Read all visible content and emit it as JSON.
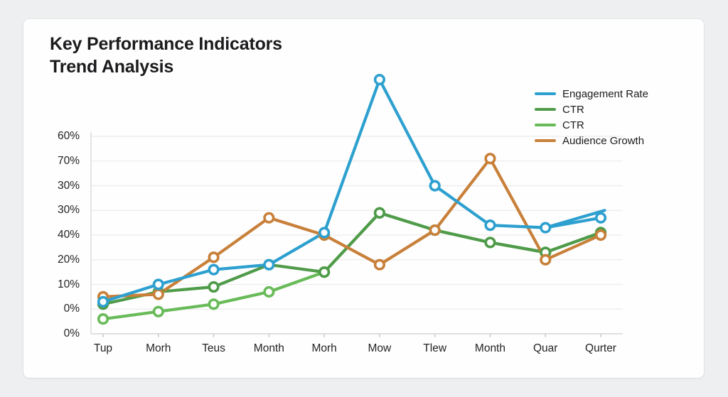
{
  "header": {
    "title": "Key Performance Indicators\nTrend Analysis"
  },
  "legend": {
    "items": [
      {
        "label": "Engagement Rate",
        "color": "#2da0cf"
      },
      {
        "label": "CTR",
        "color": "#4f9b49"
      },
      {
        "label": "CTR",
        "color": "#68bb58"
      },
      {
        "label": "Audience Growth",
        "color": "#c8803a"
      }
    ]
  },
  "chart_data": {
    "type": "line",
    "title": "Key Performance Indicators Trend Analysis",
    "categories": [
      "Tup",
      "Morh",
      "Teus",
      "Month",
      "Morh",
      "Mow",
      "Tlew",
      "Month",
      "Quar",
      "Qurter"
    ],
    "y_tick_labels_top_to_bottom": [
      "60%",
      "70%",
      "30%",
      "30%",
      "40%",
      "20%",
      "10%",
      "0%",
      "0%"
    ],
    "unit_per_gridline": 10,
    "ylim": [
      0,
      110
    ],
    "grid": true,
    "legend_position": "top-right",
    "series": [
      {
        "name": "Engagement Rate",
        "color": "#2da0cf",
        "values": [
          13,
          20,
          26,
          28,
          41,
          103,
          60,
          44,
          43,
          47
        ]
      },
      {
        "name": "CTR",
        "color": "#4f9b49",
        "values": [
          12,
          17,
          19,
          28,
          25,
          49,
          42,
          37,
          33,
          41
        ]
      },
      {
        "name": "CTR",
        "color": "#68bb58",
        "values": [
          6,
          9,
          12,
          17,
          25,
          49,
          42,
          37,
          33,
          41
        ]
      },
      {
        "name": "Audience Growth",
        "color": "#c8803a",
        "values": [
          15,
          16,
          31,
          47,
          40,
          28,
          42,
          71,
          30,
          40
        ]
      }
    ],
    "extra_segments": [
      {
        "series": "Engagement Rate",
        "color": "#2da0cf",
        "from": [
          8,
          43
        ],
        "to": [
          9.07,
          50
        ]
      }
    ]
  }
}
